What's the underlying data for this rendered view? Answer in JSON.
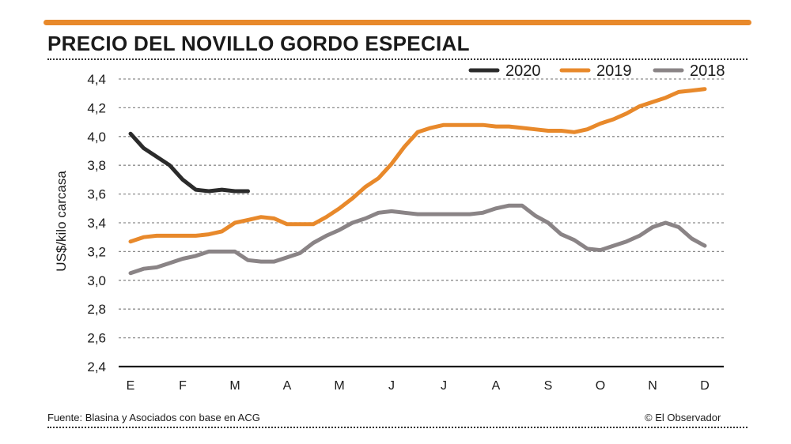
{
  "title": "PRECIO DEL NOVILLO GORDO ESPECIAL",
  "source": "Fuente: Blasina y Asociados con base en ACG",
  "credit": "© El Observador",
  "colors": {
    "accent": "#E8892B",
    "y2020": "#2b2b2b",
    "y2019": "#E8892B",
    "y2018": "#8a8486"
  },
  "chart_data": {
    "type": "line",
    "title": "PRECIO DEL NOVILLO GORDO ESPECIAL",
    "ylabel": "US$/kilo carcasa",
    "xlabel": "",
    "ylim": [
      2.4,
      4.4
    ],
    "yticks": [
      "4,4",
      "4,2",
      "4,0",
      "3,8",
      "3,6",
      "3,4",
      "3,2",
      "3,0",
      "2,8",
      "2,6",
      "2,4"
    ],
    "categories": [
      "E",
      "F",
      "M",
      "A",
      "M",
      "J",
      "J",
      "A",
      "S",
      "O",
      "N",
      "D"
    ],
    "grid": true,
    "legend_position": "top-right",
    "series": [
      {
        "name": "2020",
        "color": "#2b2b2b",
        "x": [
          1,
          1.25,
          1.5,
          1.75,
          2,
          2.25,
          2.5,
          2.75,
          3.0,
          3.25
        ],
        "values": [
          4.02,
          3.92,
          3.86,
          3.8,
          3.7,
          3.63,
          3.62,
          3.63,
          3.62,
          3.62
        ]
      },
      {
        "name": "2019",
        "color": "#E8892B",
        "x": [
          1,
          1.25,
          1.5,
          1.75,
          2,
          2.25,
          2.5,
          2.75,
          3,
          3.25,
          3.5,
          3.75,
          4,
          4.25,
          4.5,
          4.75,
          5,
          5.25,
          5.5,
          5.75,
          6,
          6.25,
          6.5,
          6.75,
          7,
          7.25,
          7.5,
          7.75,
          8,
          8.25,
          8.5,
          8.75,
          9,
          9.25,
          9.5,
          9.75,
          10,
          10.25,
          10.5,
          10.75,
          11,
          11.25,
          11.5,
          11.75,
          12
        ],
        "values": [
          3.27,
          3.3,
          3.31,
          3.31,
          3.31,
          3.31,
          3.32,
          3.34,
          3.4,
          3.42,
          3.44,
          3.43,
          3.39,
          3.39,
          3.39,
          3.44,
          3.5,
          3.57,
          3.65,
          3.71,
          3.81,
          3.93,
          4.03,
          4.06,
          4.08,
          4.08,
          4.08,
          4.08,
          4.07,
          4.07,
          4.06,
          4.05,
          4.04,
          4.04,
          4.03,
          4.05,
          4.09,
          4.12,
          4.16,
          4.21,
          4.24,
          4.27,
          4.31,
          4.32,
          4.33
        ]
      },
      {
        "name": "2018",
        "color": "#8a8486",
        "x": [
          1,
          1.25,
          1.5,
          1.75,
          2,
          2.25,
          2.5,
          2.75,
          3,
          3.25,
          3.5,
          3.75,
          4,
          4.25,
          4.5,
          4.75,
          5,
          5.25,
          5.5,
          5.75,
          6,
          6.25,
          6.5,
          6.75,
          7,
          7.25,
          7.5,
          7.75,
          8,
          8.25,
          8.5,
          8.75,
          9,
          9.25,
          9.5,
          9.75,
          10,
          10.25,
          10.5,
          10.75,
          11,
          11.25,
          11.5,
          11.75,
          12
        ],
        "values": [
          3.05,
          3.08,
          3.09,
          3.12,
          3.15,
          3.17,
          3.2,
          3.2,
          3.2,
          3.14,
          3.13,
          3.13,
          3.16,
          3.19,
          3.26,
          3.31,
          3.35,
          3.4,
          3.43,
          3.47,
          3.48,
          3.47,
          3.46,
          3.46,
          3.46,
          3.46,
          3.46,
          3.47,
          3.5,
          3.52,
          3.52,
          3.45,
          3.4,
          3.32,
          3.28,
          3.22,
          3.21,
          3.24,
          3.27,
          3.31,
          3.37,
          3.4,
          3.37,
          3.29,
          3.24
        ]
      }
    ]
  }
}
